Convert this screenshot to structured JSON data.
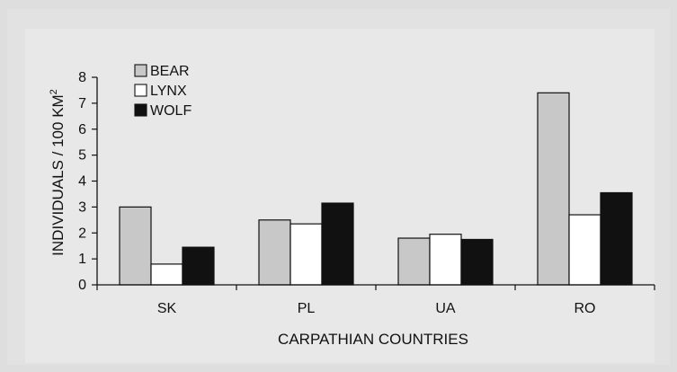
{
  "chart_data": {
    "type": "bar",
    "xlabel": "CARPATHIAN COUNTRIES",
    "ylabel": "INDIVIDUALS / 100 KM",
    "ylabel_superscript": "2",
    "categories": [
      "SK",
      "PL",
      "UA",
      "RO"
    ],
    "ylim": [
      0,
      8
    ],
    "yticks": [
      "0",
      "1",
      "2",
      "3",
      "4",
      "5",
      "6",
      "7",
      "8"
    ],
    "grid": false,
    "legend_position": "top-left",
    "series": [
      {
        "name": "BEAR",
        "color": "#c8c8c8",
        "values": [
          3.0,
          2.5,
          1.8,
          7.4
        ]
      },
      {
        "name": "LYNX",
        "color": "#ffffff",
        "values": [
          0.8,
          2.35,
          1.95,
          2.7
        ]
      },
      {
        "name": "WOLF",
        "color": "#111111",
        "values": [
          1.45,
          3.15,
          1.75,
          3.55
        ]
      }
    ]
  }
}
